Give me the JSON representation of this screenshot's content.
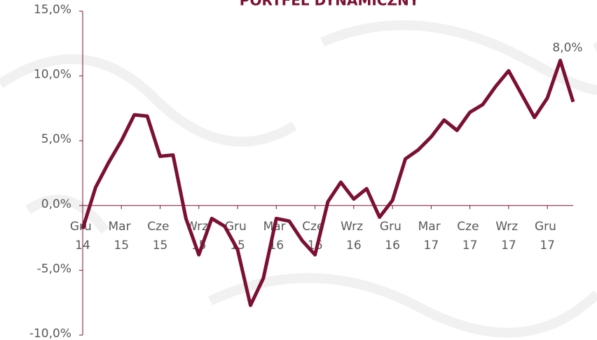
{
  "chart_data": {
    "type": "line",
    "title": "PORTFEL DYNAMICZNY",
    "categories": [
      "Gru 14",
      null,
      null,
      "Mar 15",
      null,
      null,
      "Cze 15",
      null,
      null,
      "Wrz 15",
      null,
      null,
      "Gru 15",
      null,
      null,
      "Mar 16",
      null,
      null,
      "Cze 16",
      null,
      null,
      "Wrz 16",
      null,
      null,
      "Gru 16",
      null,
      null,
      "Mar 17",
      null,
      null,
      "Cze 17",
      null,
      null,
      "Wrz 17",
      null,
      null,
      "Gru 17",
      null,
      null
    ],
    "series": [
      {
        "name": "Portfel dynamiczny",
        "color": "#7b1034",
        "values": [
          -1.8,
          1.4,
          3.3,
          5.0,
          7.0,
          6.9,
          3.8,
          3.9,
          -1.0,
          -3.8,
          -1.0,
          -1.6,
          -3.4,
          -7.7,
          -5.6,
          -1.0,
          -1.2,
          -2.7,
          -3.8,
          0.3,
          1.8,
          0.5,
          1.3,
          -0.9,
          0.4,
          3.6,
          4.3,
          5.3,
          6.6,
          5.8,
          7.2,
          7.8,
          9.2,
          10.4,
          8.6,
          6.8,
          8.3,
          11.2,
          8.0
        ],
        "value_labels": [
          null,
          null,
          null,
          null,
          null,
          null,
          null,
          null,
          null,
          null,
          null,
          null,
          null,
          null,
          null,
          null,
          null,
          null,
          null,
          null,
          null,
          null,
          null,
          null,
          null,
          null,
          null,
          null,
          null,
          null,
          null,
          null,
          null,
          null,
          null,
          null,
          null,
          null,
          "8,0%"
        ]
      }
    ],
    "ylim": [
      -10,
      15
    ],
    "yticks": [
      {
        "value": -10,
        "label": "-10,0%"
      },
      {
        "value": -5,
        "label": "-5,0%"
      },
      {
        "value": 0,
        "label": "0,0%"
      },
      {
        "value": 5,
        "label": "5,0%"
      },
      {
        "value": 10,
        "label": "10,0%"
      },
      {
        "value": 15,
        "label": "15,0%"
      }
    ],
    "grid": false
  }
}
